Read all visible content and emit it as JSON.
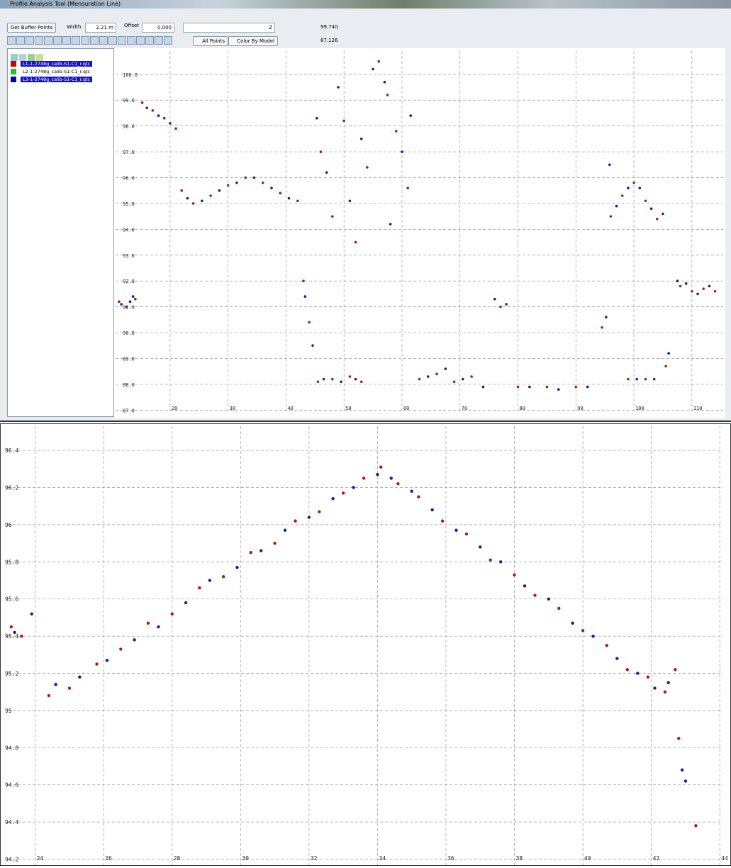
{
  "window": {
    "title": "Profile Analysis Tool (Mensuration Line)",
    "buttons": {
      "get_buffer": "Get Buffer Points",
      "all_points": "All Points",
      "color_by": "Color By Model"
    },
    "fields": {
      "width_label": "Width",
      "width_value": "2.21 m",
      "offset_label": "Offset",
      "offset_value": "0.000",
      "z_label": "Z",
      "z_max": "99.740",
      "z_min": "87.126"
    },
    "layers": [
      {
        "name": "L1-1-2748g_calib-S1-C1_r.qtc",
        "color": "#d40000",
        "selected": true
      },
      {
        "name": "L2-1-2748g_calib-S1-C1_r.qtc",
        "color": "#1ec81e",
        "selected": false
      },
      {
        "name": "L3-1-2748g_calib-S1-C1_r.qtc",
        "color": "#0000cc",
        "selected": true
      }
    ]
  },
  "chart_data": [
    {
      "type": "scatter",
      "grid": true,
      "xlim": [
        10.6,
        115.4
      ],
      "ylim": [
        86.9,
        100.9
      ],
      "xticks": [
        20,
        30,
        40,
        50,
        60,
        70,
        80,
        90,
        100,
        110
      ],
      "yticks": [
        {
          "value": 100,
          "label": "100.0"
        },
        {
          "value": 99,
          "label": "99.0"
        },
        {
          "value": 98,
          "label": "98.0"
        },
        {
          "value": 97,
          "label": "97.0"
        },
        {
          "value": 96,
          "label": "96.0"
        },
        {
          "value": 95,
          "label": "95.0"
        },
        {
          "value": 94,
          "label": "94.0"
        },
        {
          "value": 93,
          "label": "93.0"
        },
        {
          "value": 92,
          "label": "92.0"
        },
        {
          "value": 91,
          "label": "91.0"
        },
        {
          "value": 90,
          "label": "90.0"
        },
        {
          "value": 89,
          "label": "89.0"
        },
        {
          "value": 88,
          "label": "88.0"
        },
        {
          "value": 87,
          "label": "87.0"
        }
      ],
      "series": [
        {
          "color": "#b01818",
          "x": [
            11.2,
            12.5,
            14.0,
            15.2,
            17.0,
            19.0,
            21.0,
            22.0,
            24.0,
            27.0,
            30.0,
            33.0,
            36.0,
            39.0,
            42.0,
            43.0,
            44.0,
            45.5,
            48.0,
            51.0,
            53.0,
            46.0,
            48.0,
            50.0,
            52.0,
            54.0,
            56.0,
            57.5,
            59.0,
            61.0,
            63.0,
            66.0,
            69.0,
            72.0,
            77.0,
            80.0,
            85.0,
            90.0,
            94.5,
            96.0,
            98.0,
            100.0,
            102.0,
            104.0,
            99.0,
            102.0,
            105.5,
            108.0,
            110.0,
            112.0,
            114.0
          ],
          "y": [
            91.2,
            91.0,
            91.3,
            98.9,
            98.6,
            98.3,
            97.9,
            95.5,
            95.0,
            95.3,
            95.7,
            96.0,
            95.8,
            95.4,
            95.1,
            92.0,
            90.4,
            88.1,
            88.2,
            88.3,
            88.1,
            97.0,
            94.5,
            98.2,
            93.5,
            96.4,
            100.5,
            99.2,
            97.8,
            95.6,
            88.2,
            88.4,
            88.1,
            88.3,
            91.0,
            87.9,
            87.9,
            87.9,
            90.2,
            94.5,
            95.3,
            95.8,
            95.1,
            94.4,
            88.2,
            88.2,
            88.7,
            91.8,
            91.6,
            91.7,
            91.6
          ]
        },
        {
          "color": "#1a1aa8",
          "x": [
            11.6,
            13.1,
            13.6,
            16.0,
            18.0,
            20.0,
            23.0,
            25.5,
            28.5,
            31.5,
            34.5,
            37.5,
            40.5,
            43.3,
            44.6,
            46.5,
            49.5,
            52.0,
            45.3,
            47.0,
            49.0,
            51.0,
            53.0,
            55.0,
            57.0,
            58.0,
            60.0,
            61.5,
            64.5,
            67.5,
            70.5,
            74.0,
            76.0,
            78.0,
            82.0,
            87.0,
            92.0,
            95.2,
            95.8,
            97.0,
            99.0,
            101.0,
            103.0,
            105.0,
            100.5,
            103.5,
            106.0,
            107.5,
            109.0,
            111.0,
            113.0
          ],
          "y": [
            91.1,
            91.2,
            91.4,
            98.7,
            98.4,
            98.1,
            95.2,
            95.1,
            95.5,
            95.8,
            96.0,
            95.6,
            95.2,
            91.4,
            89.5,
            88.2,
            88.1,
            88.2,
            98.3,
            96.2,
            99.5,
            95.1,
            97.5,
            100.2,
            99.7,
            94.2,
            97.0,
            98.4,
            88.3,
            88.6,
            88.2,
            87.9,
            91.3,
            91.1,
            87.9,
            87.8,
            87.9,
            90.6,
            96.5,
            94.9,
            95.6,
            95.6,
            94.8,
            94.6,
            88.2,
            88.2,
            89.2,
            92.0,
            91.9,
            91.5,
            91.8
          ]
        }
      ]
    },
    {
      "type": "scatter",
      "grid": true,
      "xlim": [
        23.2,
        44.1
      ],
      "ylim": [
        94.16,
        96.53
      ],
      "xticks": [
        24,
        26,
        28,
        30,
        32,
        34,
        36,
        38,
        40,
        42,
        44
      ],
      "yticks": [
        96.4,
        96.2,
        96,
        95.8,
        95.6,
        95.4,
        95.2,
        95,
        94.8,
        94.6,
        94.4,
        94.2
      ],
      "series": [
        {
          "color": "#b01818",
          "x": [
            23.3,
            23.6,
            24.4,
            25.0,
            25.8,
            26.5,
            27.3,
            28.0,
            28.8,
            29.5,
            30.3,
            31.0,
            31.6,
            32.3,
            33.0,
            33.6,
            34.1,
            34.6,
            35.2,
            35.9,
            36.6,
            37.3,
            38.0,
            38.6,
            39.3,
            40.0,
            40.7,
            41.3,
            41.9,
            42.4,
            42.7,
            42.8,
            43.3
          ],
          "y": [
            95.45,
            95.4,
            95.08,
            95.12,
            95.25,
            95.33,
            95.47,
            95.52,
            95.66,
            95.72,
            95.85,
            95.9,
            96.02,
            96.07,
            96.17,
            96.25,
            96.31,
            96.22,
            96.15,
            96.02,
            95.95,
            95.81,
            95.73,
            95.62,
            95.55,
            95.43,
            95.35,
            95.22,
            95.18,
            95.1,
            95.22,
            94.85,
            94.38
          ]
        },
        {
          "color": "#1a1aa8",
          "x": [
            23.4,
            23.9,
            24.6,
            25.3,
            26.1,
            26.9,
            27.6,
            28.4,
            29.1,
            29.9,
            30.6,
            31.3,
            32.0,
            32.7,
            33.3,
            34.0,
            34.4,
            35.0,
            35.6,
            36.3,
            37.0,
            37.6,
            38.3,
            39.0,
            39.7,
            40.3,
            41.0,
            41.6,
            42.1,
            42.5,
            42.9,
            43.0
          ],
          "y": [
            95.42,
            95.52,
            95.14,
            95.18,
            95.27,
            95.38,
            95.45,
            95.58,
            95.7,
            95.77,
            95.86,
            95.97,
            96.04,
            96.14,
            96.2,
            96.27,
            96.25,
            96.18,
            96.08,
            95.97,
            95.88,
            95.8,
            95.67,
            95.6,
            95.47,
            95.4,
            95.28,
            95.2,
            95.12,
            95.15,
            94.68,
            94.62
          ]
        }
      ]
    }
  ]
}
